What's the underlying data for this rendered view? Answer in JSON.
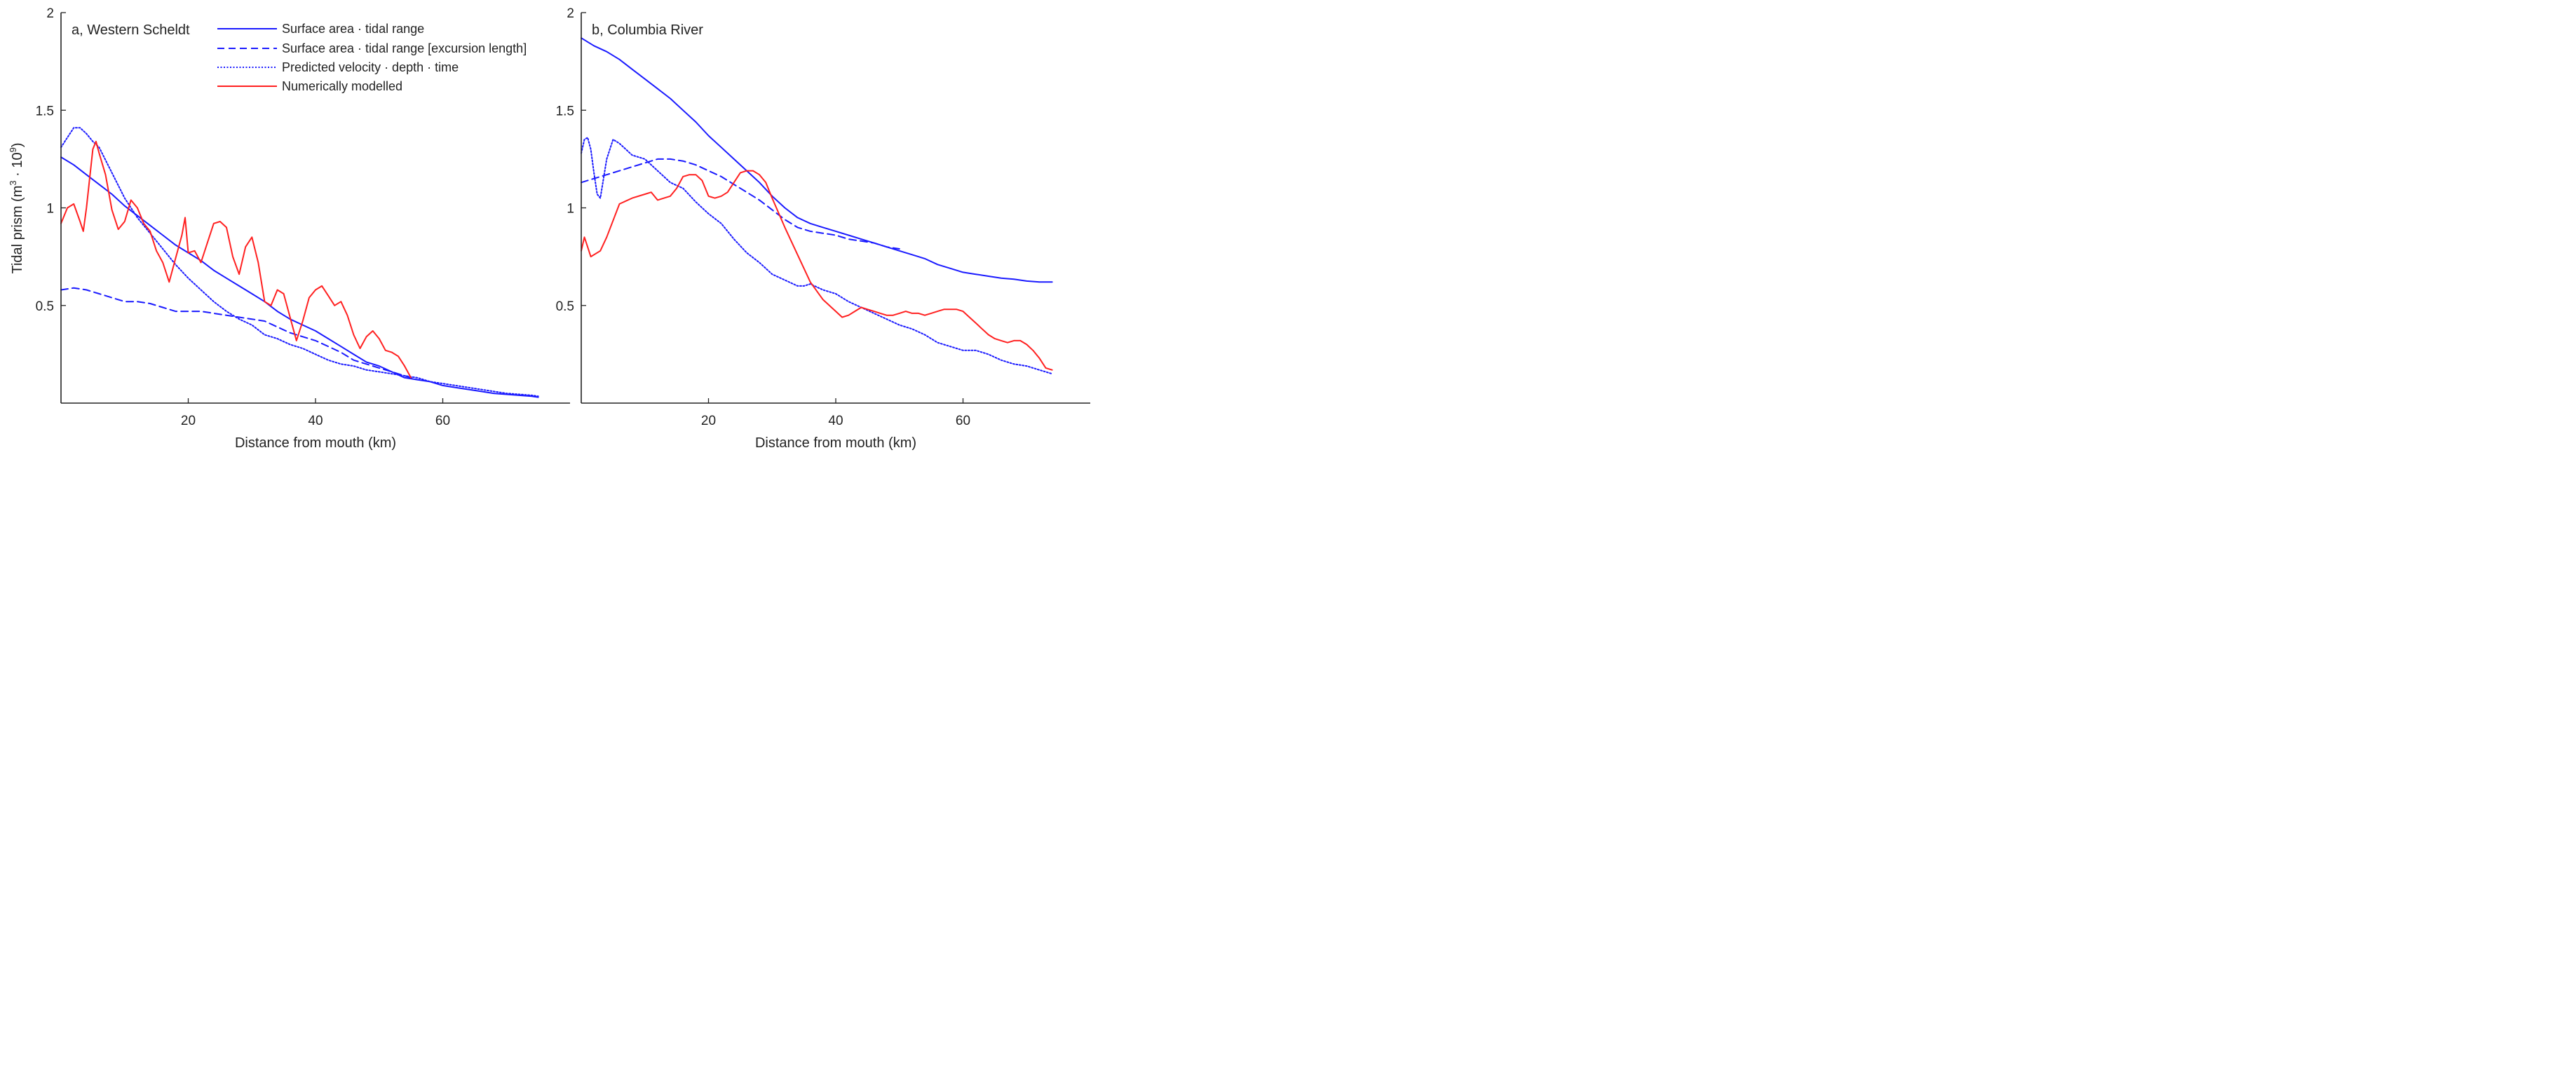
{
  "figure": {
    "ylabel_main": "Tidal prism (m",
    "ylabel_sup1": "3",
    "ylabel_mid": " · 10",
    "ylabel_sup2": "9",
    "ylabel_end": ")"
  },
  "legend": {
    "entries": [
      {
        "label": "Surface area · tidal range",
        "color": "#1a1aff",
        "dash": "solid"
      },
      {
        "label": "Surface area · tidal range [excursion length]",
        "color": "#1a1aff",
        "dash": "dashed"
      },
      {
        "label": "Predicted velocity · depth · time",
        "color": "#1a1aff",
        "dash": "dotted"
      },
      {
        "label": "Numerically modelled",
        "color": "#ff2020",
        "dash": "solid"
      }
    ]
  },
  "chart_data": [
    {
      "type": "line",
      "title": "a, Western Scheldt",
      "xlabel": "Distance from mouth (km)",
      "ylabel": "Tidal prism (m3 · 10^9)",
      "xlim": [
        0,
        80
      ],
      "ylim": [
        0,
        2
      ],
      "xticks": [
        20,
        40,
        60
      ],
      "xtick_labels": [
        "20",
        "40",
        "60"
      ],
      "yticks": [
        0.5,
        1,
        1.5,
        2
      ],
      "ytick_labels": [
        "0.5",
        "1",
        "1.5",
        "2"
      ],
      "series": [
        {
          "name": "Surface area · tidal range",
          "color": "#1a1aff",
          "dash": "solid",
          "x": [
            0,
            2,
            4,
            6,
            8,
            10,
            12,
            14,
            16,
            18,
            20,
            22,
            24,
            26,
            28,
            30,
            32,
            34,
            36,
            38,
            40,
            42,
            44,
            46,
            48,
            50,
            52,
            54,
            56,
            58,
            60,
            62,
            64,
            66,
            68,
            70,
            72,
            74,
            75
          ],
          "y": [
            1.26,
            1.22,
            1.17,
            1.12,
            1.07,
            1.01,
            0.96,
            0.91,
            0.86,
            0.81,
            0.77,
            0.73,
            0.68,
            0.64,
            0.6,
            0.56,
            0.52,
            0.47,
            0.43,
            0.4,
            0.37,
            0.33,
            0.29,
            0.25,
            0.21,
            0.19,
            0.16,
            0.13,
            0.12,
            0.11,
            0.09,
            0.08,
            0.07,
            0.06,
            0.05,
            0.045,
            0.04,
            0.035,
            0.03
          ]
        },
        {
          "name": "Surface area · tidal range [excursion length]",
          "color": "#1a1aff",
          "dash": "dashed",
          "x": [
            0,
            2,
            4,
            6,
            8,
            10,
            12,
            14,
            16,
            18,
            20,
            22,
            24,
            26,
            28,
            30,
            32,
            34,
            36,
            38,
            40,
            42,
            44,
            46,
            48,
            50,
            52,
            54,
            56
          ],
          "y": [
            0.58,
            0.59,
            0.58,
            0.56,
            0.54,
            0.52,
            0.52,
            0.51,
            0.49,
            0.47,
            0.47,
            0.47,
            0.46,
            0.45,
            0.44,
            0.43,
            0.42,
            0.39,
            0.36,
            0.34,
            0.32,
            0.29,
            0.26,
            0.22,
            0.2,
            0.18,
            0.16,
            0.14,
            0.12
          ]
        },
        {
          "name": "Predicted velocity · depth · time",
          "color": "#1a1aff",
          "dash": "dotted",
          "x": [
            0,
            1,
            2,
            3,
            4,
            5,
            6,
            8,
            10,
            12,
            14,
            16,
            18,
            20,
            22,
            24,
            26,
            28,
            30,
            32,
            34,
            36,
            38,
            40,
            42,
            44,
            46,
            48,
            50,
            52,
            54,
            56,
            58,
            60,
            62,
            64,
            66,
            68,
            70,
            72,
            74,
            75
          ],
          "y": [
            1.31,
            1.36,
            1.41,
            1.41,
            1.38,
            1.34,
            1.31,
            1.18,
            1.05,
            0.95,
            0.87,
            0.79,
            0.71,
            0.64,
            0.58,
            0.52,
            0.47,
            0.43,
            0.4,
            0.35,
            0.33,
            0.3,
            0.28,
            0.25,
            0.22,
            0.2,
            0.19,
            0.17,
            0.16,
            0.15,
            0.14,
            0.13,
            0.11,
            0.1,
            0.09,
            0.08,
            0.07,
            0.06,
            0.05,
            0.045,
            0.04,
            0.035
          ]
        },
        {
          "name": "Numerically modelled",
          "color": "#ff2020",
          "dash": "solid",
          "x": [
            0,
            1,
            2,
            3,
            3.5,
            4,
            5,
            5.5,
            6,
            7,
            8,
            9,
            10,
            11,
            12,
            13,
            14,
            15,
            16,
            17,
            18,
            19,
            19.5,
            20,
            21,
            22,
            23,
            24,
            25,
            26,
            27,
            28,
            29,
            30,
            31,
            32,
            33,
            34,
            35,
            36,
            37,
            38,
            39,
            40,
            41,
            42,
            43,
            44,
            45,
            46,
            47,
            48,
            49,
            50,
            51,
            52,
            53,
            54,
            55
          ],
          "y": [
            0.92,
            1.0,
            1.02,
            0.93,
            0.88,
            1.0,
            1.3,
            1.34,
            1.28,
            1.17,
            0.99,
            0.89,
            0.93,
            1.04,
            1.0,
            0.92,
            0.88,
            0.78,
            0.72,
            0.62,
            0.74,
            0.86,
            0.95,
            0.77,
            0.78,
            0.72,
            0.82,
            0.92,
            0.93,
            0.9,
            0.75,
            0.66,
            0.8,
            0.85,
            0.72,
            0.52,
            0.5,
            0.58,
            0.56,
            0.44,
            0.32,
            0.42,
            0.54,
            0.58,
            0.6,
            0.55,
            0.5,
            0.52,
            0.45,
            0.35,
            0.28,
            0.34,
            0.37,
            0.33,
            0.27,
            0.26,
            0.24,
            0.19,
            0.13
          ]
        }
      ]
    },
    {
      "type": "line",
      "title": "b, Columbia River",
      "xlabel": "Distance from mouth (km)",
      "ylabel": "",
      "xlim": [
        0,
        80
      ],
      "ylim": [
        0,
        2
      ],
      "xticks": [
        20,
        40,
        60
      ],
      "xtick_labels": [
        "20",
        "40",
        "60"
      ],
      "yticks": [
        0.5,
        1,
        1.5,
        2
      ],
      "ytick_labels": [
        "0.5",
        "1",
        "1.5",
        "2"
      ],
      "series": [
        {
          "name": "Surface area · tidal range",
          "color": "#1a1aff",
          "dash": "solid",
          "x": [
            0,
            2,
            4,
            6,
            8,
            10,
            12,
            14,
            16,
            18,
            20,
            22,
            24,
            26,
            28,
            30,
            32,
            34,
            36,
            38,
            40,
            42,
            44,
            46,
            48,
            50,
            52,
            54,
            56,
            58,
            60,
            62,
            64,
            66,
            68,
            70,
            72,
            74
          ],
          "y": [
            1.87,
            1.83,
            1.8,
            1.76,
            1.71,
            1.66,
            1.61,
            1.56,
            1.5,
            1.44,
            1.37,
            1.31,
            1.25,
            1.19,
            1.13,
            1.06,
            1.0,
            0.95,
            0.92,
            0.9,
            0.88,
            0.86,
            0.84,
            0.82,
            0.8,
            0.78,
            0.76,
            0.74,
            0.71,
            0.69,
            0.67,
            0.66,
            0.65,
            0.64,
            0.635,
            0.625,
            0.62,
            0.62
          ]
        },
        {
          "name": "Surface area · tidal range [excursion length]",
          "color": "#1a1aff",
          "dash": "dashed",
          "x": [
            0,
            2,
            4,
            6,
            8,
            10,
            12,
            14,
            16,
            18,
            20,
            22,
            24,
            26,
            28,
            30,
            32,
            34,
            36,
            38,
            40,
            42,
            44,
            46,
            48,
            50
          ],
          "y": [
            1.13,
            1.15,
            1.17,
            1.19,
            1.21,
            1.23,
            1.25,
            1.25,
            1.24,
            1.22,
            1.19,
            1.16,
            1.12,
            1.08,
            1.04,
            0.99,
            0.94,
            0.9,
            0.88,
            0.87,
            0.86,
            0.84,
            0.83,
            0.82,
            0.8,
            0.79
          ]
        },
        {
          "name": "Predicted velocity · depth · time",
          "color": "#1a1aff",
          "dash": "dotted",
          "x": [
            0,
            0.5,
            1,
            1.5,
            2,
            2.5,
            3,
            4,
            5,
            6,
            8,
            10,
            12,
            14,
            16,
            18,
            20,
            22,
            24,
            26,
            28,
            30,
            32,
            34,
            35,
            36,
            38,
            40,
            42,
            44,
            46,
            48,
            50,
            52,
            54,
            56,
            58,
            60,
            62,
            64,
            66,
            68,
            70,
            72,
            74
          ],
          "y": [
            1.28,
            1.35,
            1.36,
            1.3,
            1.18,
            1.07,
            1.05,
            1.25,
            1.35,
            1.33,
            1.27,
            1.25,
            1.19,
            1.13,
            1.1,
            1.03,
            0.97,
            0.92,
            0.84,
            0.77,
            0.72,
            0.66,
            0.63,
            0.6,
            0.6,
            0.61,
            0.58,
            0.56,
            0.52,
            0.49,
            0.46,
            0.43,
            0.4,
            0.38,
            0.35,
            0.31,
            0.29,
            0.27,
            0.27,
            0.25,
            0.22,
            0.2,
            0.19,
            0.17,
            0.15
          ]
        },
        {
          "name": "Numerically modelled",
          "color": "#ff2020",
          "dash": "solid",
          "x": [
            0,
            0.5,
            1,
            1.5,
            3,
            4,
            6,
            8,
            10,
            11,
            12,
            13,
            14,
            15,
            16,
            17,
            18,
            19,
            20,
            21,
            22,
            23,
            24,
            25,
            26,
            27,
            28,
            29,
            30,
            32,
            34,
            36,
            38,
            40,
            41,
            42,
            43,
            44,
            45,
            46,
            47,
            48,
            49,
            50,
            51,
            52,
            53,
            54,
            55,
            56,
            57,
            58,
            59,
            60,
            61,
            62,
            63,
            64,
            65,
            66,
            67,
            68,
            69,
            70,
            71,
            72,
            73,
            74
          ],
          "y": [
            0.78,
            0.85,
            0.8,
            0.75,
            0.78,
            0.85,
            1.02,
            1.05,
            1.07,
            1.08,
            1.04,
            1.05,
            1.06,
            1.1,
            1.16,
            1.17,
            1.17,
            1.14,
            1.06,
            1.05,
            1.06,
            1.08,
            1.13,
            1.18,
            1.19,
            1.19,
            1.17,
            1.13,
            1.05,
            0.9,
            0.76,
            0.62,
            0.53,
            0.47,
            0.44,
            0.45,
            0.47,
            0.49,
            0.48,
            0.47,
            0.46,
            0.45,
            0.45,
            0.46,
            0.47,
            0.46,
            0.46,
            0.45,
            0.46,
            0.47,
            0.48,
            0.48,
            0.48,
            0.47,
            0.44,
            0.41,
            0.38,
            0.35,
            0.33,
            0.32,
            0.31,
            0.32,
            0.32,
            0.3,
            0.27,
            0.23,
            0.18,
            0.17
          ]
        }
      ]
    }
  ]
}
